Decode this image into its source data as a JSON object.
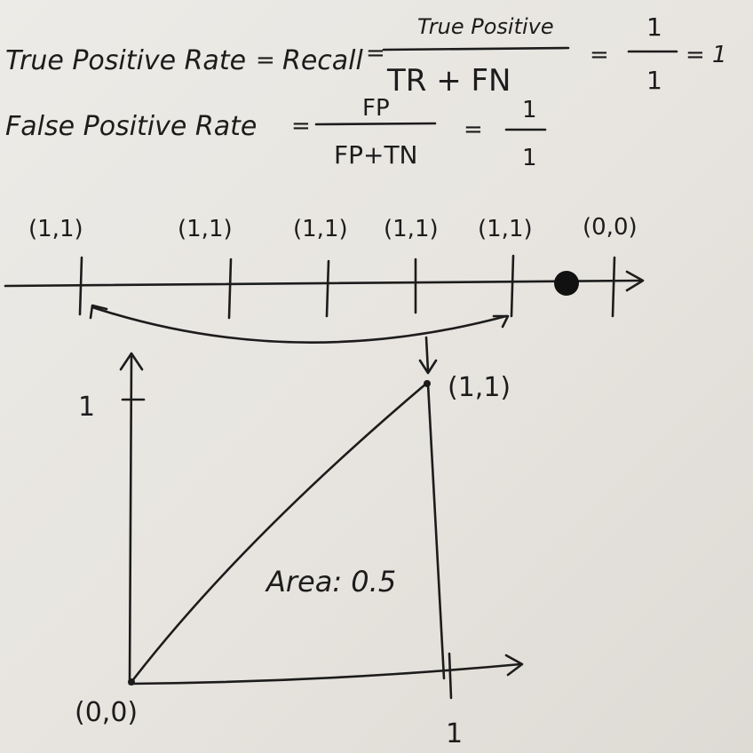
{
  "equations": {
    "tpr": {
      "lhs": "True Positive Rate",
      "eq1": "=",
      "mid": "Recall",
      "eq2": "=",
      "numerator": "True Positive",
      "denominator": "TR + FN",
      "eq3": "=",
      "num2": "1",
      "den2": "1",
      "eq4": "= 1"
    },
    "fpr": {
      "lhs": "False Positive Rate",
      "eq1": "=",
      "numerator": "FP",
      "denominator": "FP+TN",
      "eq2": "=",
      "num2": "1",
      "den2": "1"
    }
  },
  "number_line": {
    "points": [
      "(1,1)",
      "(1,1)",
      "(1,1)",
      "(1,1)",
      "(1,1)",
      "(0,0)"
    ]
  },
  "roc_plot": {
    "y_tick_label": "1",
    "x_tick_label": "1",
    "origin_label": "(0,0)",
    "top_point_label": "(1,1)",
    "area_label": "Area: 0.5"
  }
}
